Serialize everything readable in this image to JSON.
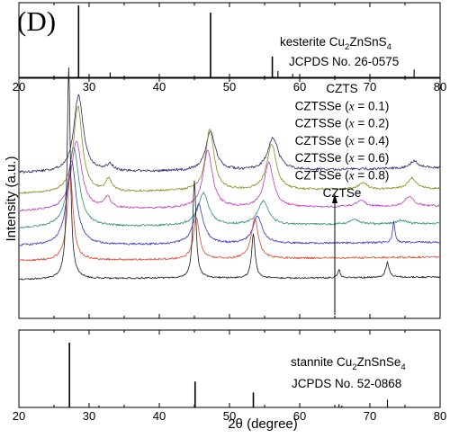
{
  "chart_data": {
    "type": "line",
    "panel_label": "(D)",
    "xlabel": "2θ (degree)",
    "ylabel": "Intensity (a.u.)",
    "xlim": [
      20,
      80
    ],
    "x_ticks": [
      20,
      30,
      40,
      50,
      60,
      70,
      80
    ],
    "x_tick_labels": [
      "20",
      "30",
      "40",
      "50",
      "60",
      "70",
      "80"
    ],
    "arrow": {
      "x": 65,
      "direction": "up"
    },
    "legend": [
      "CZTS",
      "CZTSSe (x = 0.1)",
      "CZTSSe (x = 0.2)",
      "CZTSSe (x = 0.4)",
      "CZTSSe (x = 0.6)",
      "CZTSSe (x = 0.8)",
      "CZTSe"
    ],
    "reference_top": {
      "name_prefix": "kesterite Cu",
      "sub1": "2",
      "name_mid": "ZnSnS",
      "sub2": "4",
      "card": "JCPDS No. 26-0575",
      "x": [
        28.5,
        33.0,
        47.3,
        56.1,
        56.9,
        59.0,
        76.3
      ],
      "intensity": [
        100,
        8,
        90,
        30,
        10,
        6,
        12
      ]
    },
    "reference_bottom": {
      "name_prefix": "stannite Cu",
      "sub1": "2",
      "name_mid": "ZnSnSe",
      "sub2": "4",
      "card": "JCPDS No. 52-0868",
      "x": [
        27.2,
        31.4,
        45.1,
        53.4,
        65.6,
        66.0,
        72.5
      ],
      "intensity": [
        100,
        3,
        40,
        23,
        5,
        3,
        12
      ]
    },
    "series": [
      {
        "name": "CZTS",
        "color": "#2a2a6e",
        "noise": 3,
        "noise_seed": 1,
        "baseline": [
          [
            20,
            11.3
          ],
          [
            40,
            11.4
          ],
          [
            60,
            11.5
          ],
          [
            80,
            11.7
          ]
        ],
        "peaks": [
          [
            28.5,
            6.2,
            0.8
          ],
          [
            33.0,
            0.5,
            0.6
          ],
          [
            47.3,
            3.2,
            0.8
          ],
          [
            56.2,
            2.6,
            0.9
          ],
          [
            76.3,
            0.6,
            0.7
          ]
        ]
      },
      {
        "name": "CZTSSe (x = 0.1)",
        "color": "#8a8a1a",
        "noise": 2.2,
        "noise_seed": 2,
        "baseline": [
          [
            20,
            9.6
          ],
          [
            40,
            9.8
          ],
          [
            60,
            9.9
          ],
          [
            80,
            10.0
          ]
        ],
        "peaks": [
          [
            28.4,
            7.0,
            0.75
          ],
          [
            32.8,
            1.0,
            0.5
          ],
          [
            47.2,
            5.0,
            0.7
          ],
          [
            56.0,
            3.7,
            0.8
          ],
          [
            69.0,
            0.5,
            0.8
          ],
          [
            76.0,
            0.9,
            0.7
          ]
        ]
      },
      {
        "name": "CZTSSe (x = 0.2)",
        "color": "#c23ac2",
        "noise": 2.2,
        "noise_seed": 3,
        "baseline": [
          [
            20,
            8.2
          ],
          [
            40,
            8.4
          ],
          [
            60,
            8.5
          ],
          [
            80,
            8.6
          ]
        ],
        "peaks": [
          [
            28.2,
            5.5,
            0.9
          ],
          [
            32.6,
            0.9,
            0.6
          ],
          [
            46.9,
            4.6,
            0.8
          ],
          [
            55.6,
            3.6,
            0.8
          ],
          [
            68.7,
            0.5,
            0.8
          ],
          [
            75.6,
            0.8,
            0.8
          ]
        ]
      },
      {
        "name": "CZTSSe (x = 0.4)",
        "color": "#2f8a80",
        "noise": 2.2,
        "noise_seed": 4,
        "baseline": [
          [
            20,
            6.8
          ],
          [
            40,
            7.0
          ],
          [
            60,
            7.1
          ],
          [
            80,
            7.2
          ]
        ],
        "peaks": [
          [
            27.8,
            6.5,
            0.9
          ],
          [
            46.3,
            2.6,
            0.9
          ],
          [
            54.8,
            1.9,
            0.9
          ],
          [
            67.8,
            0.4,
            0.8
          ],
          [
            74.5,
            0.3,
            0.8
          ]
        ]
      },
      {
        "name": "CZTSSe (x = 0.6)",
        "color": "#3535c8",
        "noise": 2.2,
        "noise_seed": 5,
        "baseline": [
          [
            20,
            5.4
          ],
          [
            40,
            5.5
          ],
          [
            60,
            5.6
          ],
          [
            80,
            5.7
          ]
        ],
        "peaks": [
          [
            27.5,
            6.8,
            0.8
          ],
          [
            45.6,
            3.2,
            0.8
          ],
          [
            54.0,
            2.2,
            0.8
          ],
          [
            73.4,
            1.7,
            0.2
          ]
        ]
      },
      {
        "name": "CZTSSe (x = 0.8)",
        "color": "#e0452a",
        "noise": 2.2,
        "noise_seed": 6,
        "baseline": [
          [
            20,
            4.2
          ],
          [
            40,
            4.3
          ],
          [
            60,
            4.4
          ],
          [
            80,
            4.5
          ]
        ],
        "peaks": [
          [
            27.3,
            7.0,
            0.5
          ],
          [
            45.3,
            3.4,
            0.5
          ],
          [
            53.6,
            3.2,
            0.6
          ]
        ]
      },
      {
        "name": "CZTSe",
        "color": "#1a1a1a",
        "noise": 1.8,
        "noise_seed": 7,
        "baseline": [
          [
            20,
            2.7
          ],
          [
            40,
            2.8
          ],
          [
            60,
            2.8
          ],
          [
            80,
            2.9
          ]
        ],
        "peaks": [
          [
            27.1,
            17.0,
            0.28
          ],
          [
            45.0,
            7.8,
            0.28
          ],
          [
            53.4,
            3.6,
            0.3
          ],
          [
            65.6,
            0.7,
            0.2
          ],
          [
            72.5,
            1.2,
            0.3
          ]
        ]
      }
    ]
  }
}
